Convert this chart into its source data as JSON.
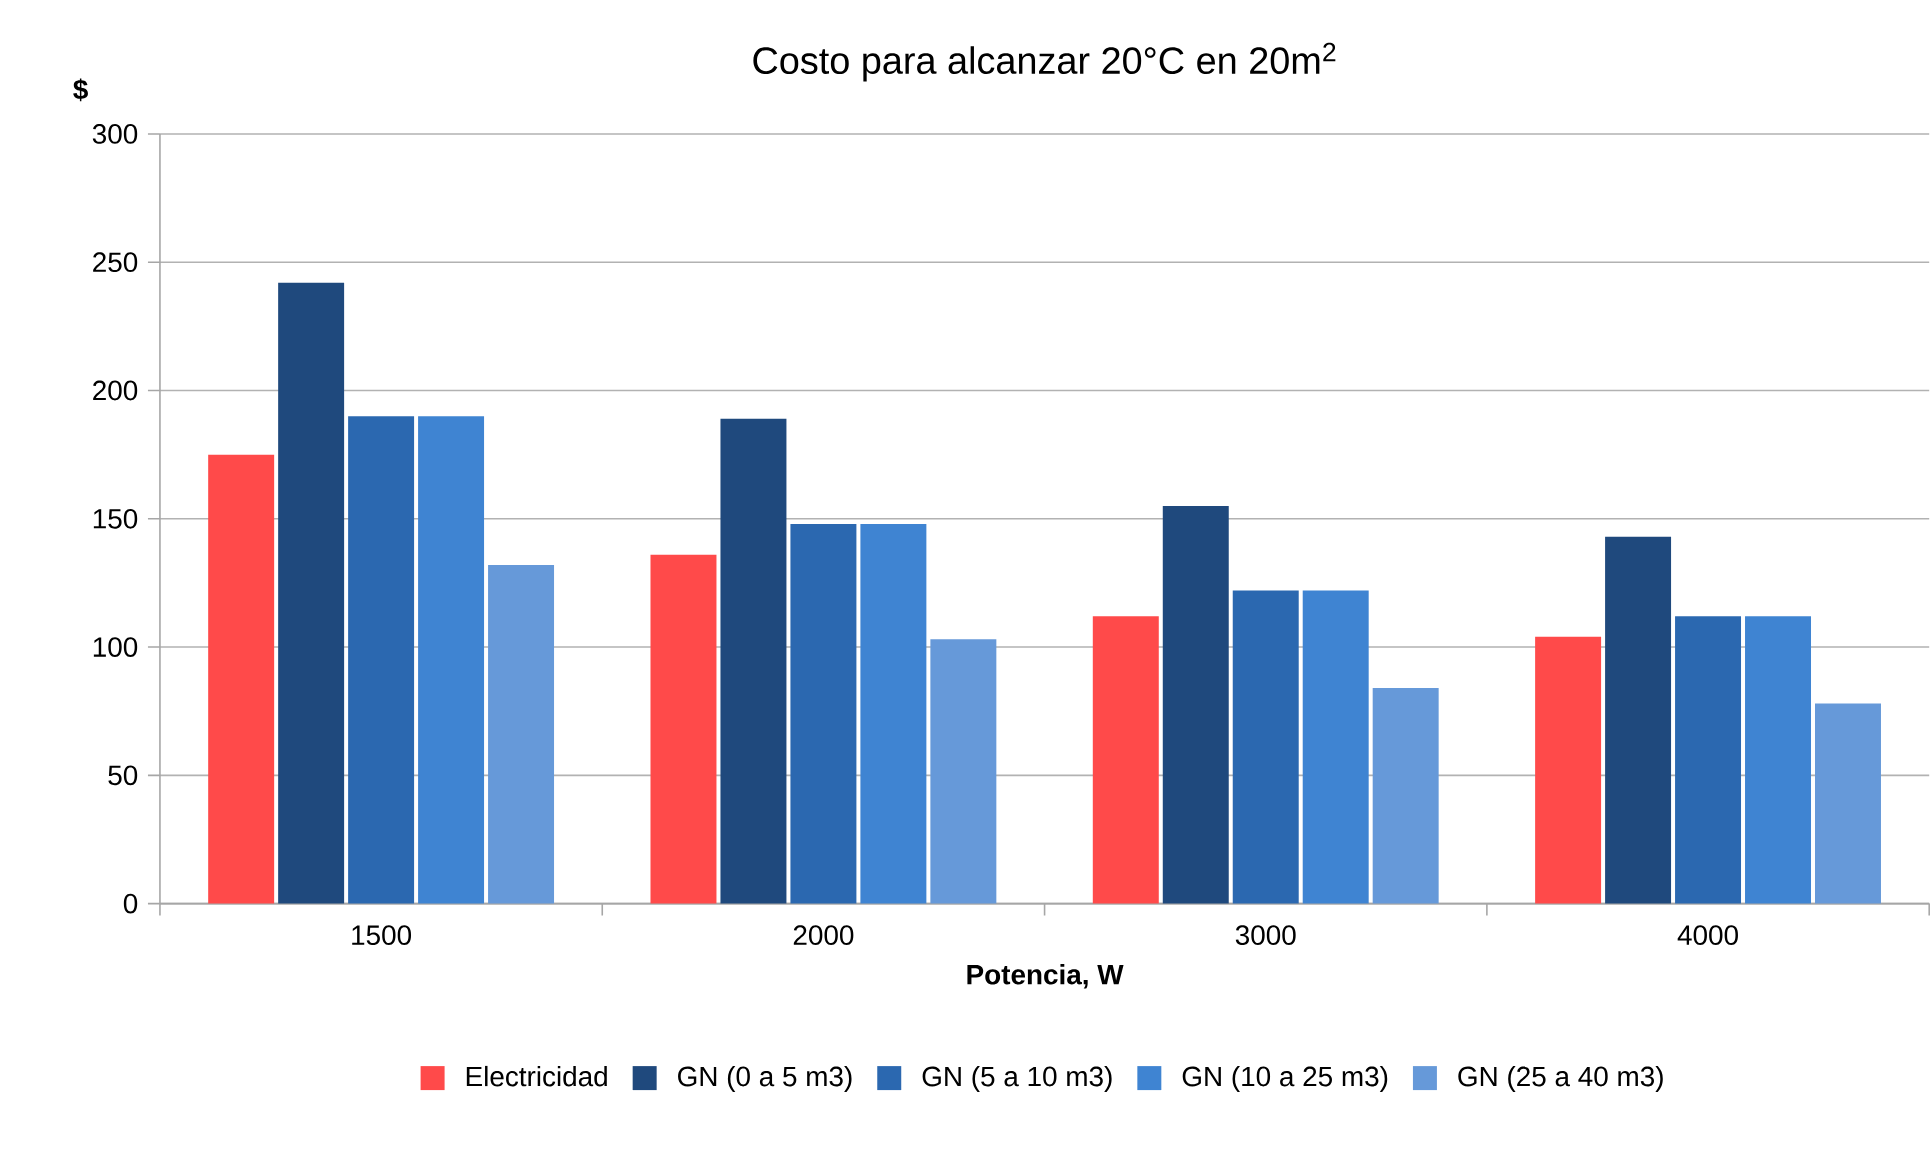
{
  "chart_data": {
    "type": "bar",
    "title": "Costo para alcanzar 20°C en 20m$^{2}$",
    "xlabel": "Potencia, W",
    "ylabel": "$",
    "categories": [
      "1500",
      "2000",
      "3000",
      "4000"
    ],
    "series": [
      {
        "name": "Electricidad",
        "color": "#ff4a4a",
        "values": [
          175,
          136,
          112,
          104
        ]
      },
      {
        "name": "GN (0 a 5 m3)",
        "color": "#1f497d",
        "values": [
          242,
          189,
          155,
          143
        ]
      },
      {
        "name": "GN (5 a 10 m3)",
        "color": "#2b68b0",
        "values": [
          190,
          148,
          122,
          112
        ]
      },
      {
        "name": "GN (10 a 25 m3)",
        "color": "#3f84d2",
        "values": [
          190,
          148,
          122,
          112
        ]
      },
      {
        "name": "GN (25 a 40 m3)",
        "color": "#6699d9",
        "values": [
          132,
          103,
          84,
          78
        ]
      }
    ],
    "ylim": [
      0,
      300
    ],
    "yticks": [
      0,
      50,
      100,
      150,
      200,
      250,
      300
    ],
    "grid": "y",
    "legend": "bottom"
  }
}
